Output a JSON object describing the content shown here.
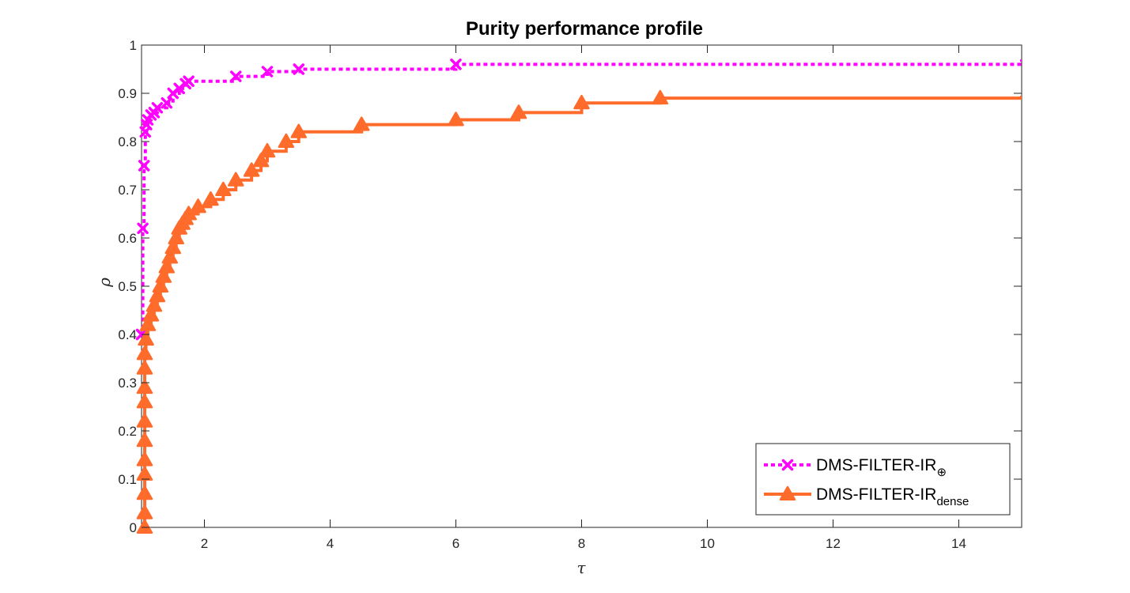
{
  "chart_data": {
    "type": "line",
    "title": "Purity performance profile",
    "xlabel": "τ",
    "ylabel": "ρ",
    "xlim": [
      1,
      15
    ],
    "ylim": [
      0,
      1
    ],
    "xticks": [
      2,
      4,
      6,
      8,
      10,
      12,
      14
    ],
    "yticks": [
      0,
      0.1,
      0.2,
      0.3,
      0.4,
      0.5,
      0.6,
      0.7,
      0.8,
      0.9,
      1
    ],
    "legend_location": "bottom-right",
    "grid": false,
    "series": [
      {
        "name": "DMS-FILTER-IR",
        "subscript": "⊕",
        "color": "#ff00ff",
        "line_style": "dotted",
        "marker": "x",
        "x": [
          1.0,
          1.02,
          1.04,
          1.06,
          1.08,
          1.1,
          1.15,
          1.2,
          1.25,
          1.4,
          1.5,
          1.6,
          1.7,
          1.75,
          2.5,
          3.0,
          3.5,
          6.0,
          15.0
        ],
        "y": [
          0.4,
          0.62,
          0.75,
          0.82,
          0.835,
          0.845,
          0.855,
          0.86,
          0.87,
          0.88,
          0.9,
          0.91,
          0.92,
          0.925,
          0.935,
          0.945,
          0.95,
          0.96,
          0.97
        ]
      },
      {
        "name": "DMS-FILTER-IR",
        "subscript": "dense",
        "color": "#ff6b2b",
        "line_style": "solid",
        "marker": "^",
        "x": [
          1.05,
          1.05,
          1.05,
          1.05,
          1.05,
          1.05,
          1.05,
          1.05,
          1.05,
          1.05,
          1.05,
          1.07,
          1.1,
          1.15,
          1.2,
          1.25,
          1.3,
          1.35,
          1.4,
          1.45,
          1.5,
          1.55,
          1.6,
          1.65,
          1.7,
          1.75,
          1.9,
          2.1,
          2.3,
          2.5,
          2.75,
          2.9,
          3.0,
          3.3,
          3.5,
          4.5,
          6.0,
          7.0,
          8.0,
          9.25,
          15.0
        ],
        "y": [
          0.0,
          0.03,
          0.07,
          0.11,
          0.14,
          0.18,
          0.22,
          0.26,
          0.29,
          0.33,
          0.36,
          0.39,
          0.42,
          0.44,
          0.46,
          0.48,
          0.5,
          0.52,
          0.54,
          0.56,
          0.58,
          0.6,
          0.62,
          0.63,
          0.64,
          0.65,
          0.665,
          0.68,
          0.7,
          0.72,
          0.74,
          0.76,
          0.78,
          0.8,
          0.82,
          0.835,
          0.845,
          0.86,
          0.88,
          0.89,
          0.895
        ]
      }
    ]
  }
}
